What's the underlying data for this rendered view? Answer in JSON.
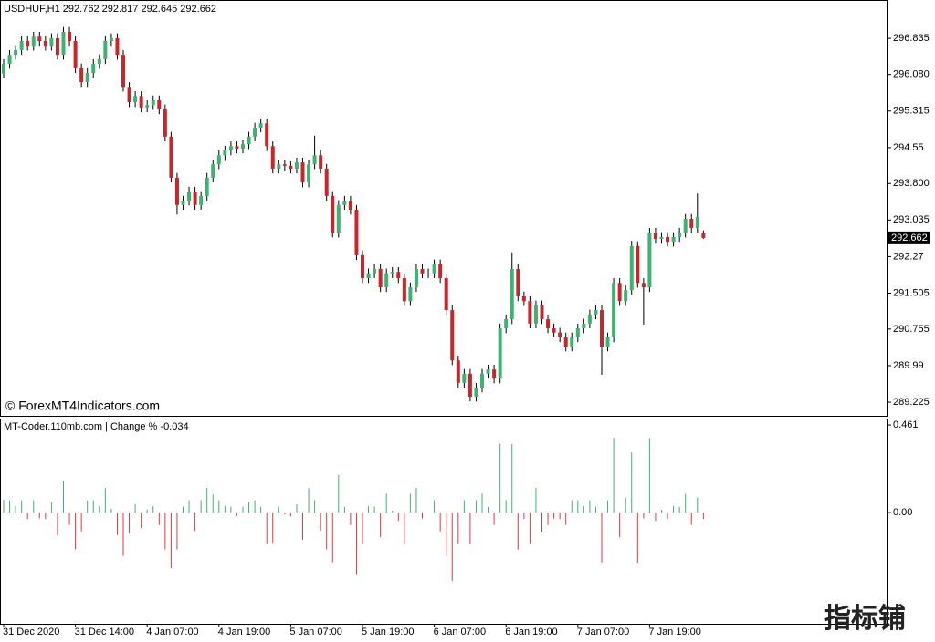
{
  "chart_data": [
    {
      "type": "candlestick",
      "title": "USDHUF,H1",
      "open": [
        296.1,
        296.3,
        296.49,
        296.59,
        296.78,
        296.68,
        296.87,
        296.78,
        296.68,
        296.84,
        296.49,
        296.97,
        296.78,
        296.21,
        295.92,
        296.11,
        296.3,
        296.4,
        296.78,
        296.84,
        296.49,
        295.82,
        295.5,
        295.63,
        295.39,
        295.44,
        295.54,
        295.35,
        294.78,
        293.92,
        293.35,
        293.44,
        293.63,
        293.35,
        293.54,
        293.92,
        294.2,
        294.39,
        294.49,
        294.58,
        294.53,
        294.62,
        294.78,
        294.97,
        295.06,
        294.58,
        294.11,
        294.2,
        294.17,
        294.11,
        294.24,
        293.82,
        294.2,
        294.39,
        294.11,
        293.54,
        292.77,
        293.35,
        293.44,
        293.25,
        292.3,
        291.82,
        291.92,
        292.01,
        291.63,
        291.92,
        291.95,
        291.82,
        291.34,
        291.63,
        292.01,
        291.92,
        291.92,
        292.11,
        291.82,
        291.15,
        290.1,
        289.63,
        289.82,
        289.34,
        289.53,
        289.82,
        289.91,
        289.72,
        290.77,
        290.96,
        292.01,
        291.44,
        291.34,
        290.87,
        291.25,
        290.96,
        290.77,
        290.68,
        290.58,
        290.39,
        290.58,
        290.77,
        290.87,
        291.06,
        291.15,
        290.39,
        290.58,
        291.72,
        291.34,
        291.57,
        292.49,
        291.72,
        291.63,
        292.77,
        292.64,
        292.68,
        292.58,
        292.68,
        292.77,
        293.06,
        292.87,
        292.762
      ],
      "high": [
        296.4,
        296.59,
        296.69,
        296.88,
        296.88,
        296.97,
        296.97,
        296.88,
        296.94,
        296.94,
        297.07,
        297.07,
        296.88,
        296.31,
        296.21,
        296.4,
        296.5,
        296.88,
        296.94,
        296.94,
        296.59,
        295.92,
        295.73,
        295.73,
        295.54,
        295.64,
        295.64,
        295.45,
        294.88,
        294.02,
        293.54,
        293.73,
        293.73,
        293.64,
        294.02,
        294.3,
        294.49,
        294.59,
        294.68,
        294.68,
        294.72,
        294.88,
        295.07,
        295.16,
        295.16,
        294.68,
        294.3,
        294.3,
        294.27,
        294.34,
        294.34,
        294.3,
        294.8,
        294.49,
        294.21,
        293.64,
        293.45,
        293.54,
        293.54,
        293.35,
        292.4,
        292.02,
        292.11,
        292.11,
        292.02,
        292.05,
        292.05,
        291.92,
        291.73,
        292.11,
        292.11,
        292.02,
        292.21,
        292.21,
        291.92,
        291.25,
        290.2,
        289.92,
        289.92,
        289.63,
        289.92,
        290.01,
        290.01,
        290.87,
        291.06,
        292.36,
        292.11,
        291.54,
        291.44,
        291.35,
        291.35,
        291.06,
        290.87,
        290.78,
        290.68,
        290.68,
        290.87,
        290.97,
        291.16,
        291.25,
        291.25,
        290.68,
        291.82,
        291.82,
        291.67,
        292.6,
        292.59,
        291.82,
        292.87,
        292.87,
        292.78,
        292.78,
        292.78,
        292.87,
        293.16,
        293.16,
        293.59,
        292.817
      ],
      "low": [
        296.0,
        296.2,
        296.39,
        296.49,
        296.58,
        296.58,
        296.68,
        296.58,
        296.58,
        296.39,
        296.39,
        296.68,
        296.11,
        295.82,
        295.82,
        296.01,
        296.2,
        296.3,
        296.68,
        296.39,
        295.72,
        295.4,
        295.4,
        295.29,
        295.29,
        295.34,
        295.25,
        294.68,
        293.82,
        293.15,
        293.25,
        293.34,
        293.25,
        293.25,
        293.44,
        293.82,
        294.1,
        294.29,
        294.39,
        294.43,
        294.43,
        294.52,
        294.68,
        294.87,
        294.48,
        294.01,
        294.01,
        294.07,
        294.01,
        294.01,
        293.72,
        293.72,
        294.1,
        294.01,
        293.44,
        292.67,
        292.67,
        293.25,
        293.15,
        292.2,
        291.72,
        291.72,
        291.82,
        291.53,
        291.53,
        291.82,
        291.72,
        291.24,
        291.24,
        291.53,
        291.82,
        291.82,
        291.82,
        291.72,
        291.05,
        290.0,
        289.53,
        289.53,
        289.24,
        289.24,
        289.43,
        289.72,
        289.62,
        289.62,
        290.67,
        290.86,
        291.34,
        291.24,
        290.77,
        290.77,
        290.86,
        290.67,
        290.58,
        290.48,
        290.29,
        290.29,
        290.48,
        290.67,
        290.77,
        290.96,
        289.8,
        290.29,
        290.48,
        291.24,
        291.24,
        291.47,
        291.62,
        290.85,
        291.53,
        292.54,
        292.54,
        292.48,
        292.48,
        292.58,
        292.67,
        292.77,
        292.77,
        292.645
      ],
      "close": [
        296.3,
        296.49,
        296.59,
        296.78,
        296.68,
        296.87,
        296.78,
        296.68,
        296.84,
        296.49,
        296.97,
        296.78,
        296.21,
        295.92,
        296.11,
        296.3,
        296.4,
        296.78,
        296.84,
        296.49,
        295.82,
        295.5,
        295.63,
        295.39,
        295.44,
        295.54,
        295.35,
        294.78,
        293.92,
        293.35,
        293.44,
        293.63,
        293.35,
        293.54,
        293.92,
        294.2,
        294.39,
        294.49,
        294.58,
        294.53,
        294.62,
        294.78,
        294.97,
        295.06,
        294.58,
        294.11,
        294.2,
        294.17,
        294.11,
        294.24,
        293.82,
        294.2,
        294.39,
        294.11,
        293.54,
        292.77,
        293.35,
        293.44,
        293.25,
        292.3,
        291.82,
        291.92,
        292.01,
        291.63,
        291.92,
        291.95,
        291.82,
        291.34,
        291.63,
        292.01,
        291.92,
        291.92,
        292.11,
        291.82,
        291.15,
        290.1,
        289.63,
        289.82,
        289.34,
        289.53,
        289.82,
        289.91,
        289.72,
        290.77,
        290.96,
        292.01,
        291.44,
        291.34,
        290.87,
        291.25,
        290.96,
        290.77,
        290.68,
        290.58,
        290.39,
        290.58,
        290.77,
        290.87,
        291.06,
        291.15,
        290.39,
        290.58,
        291.72,
        291.34,
        291.57,
        292.49,
        291.72,
        291.63,
        292.77,
        292.64,
        292.68,
        292.58,
        292.68,
        292.77,
        293.06,
        292.87,
        293.1,
        292.662
      ],
      "up_color": "#3cb371",
      "down_color": "#c8262b",
      "wick_color": "#000000",
      "ylim": [
        288.94,
        297.6
      ],
      "yticks": [
        296.835,
        {
          "value": 296.08,
          "label": "296.080"
        },
        295.315,
        294.55,
        {
          "value": 293.8,
          "label": "293.800"
        },
        293.035,
        292.27,
        291.505,
        290.755,
        289.99,
        289.225
      ],
      "annotations": [
        "© ForexMT4Indicators.com"
      ]
    },
    {
      "type": "bar",
      "title": "MT-Coder.110mb.com | Change %",
      "values": [
        0.068,
        0.065,
        0.034,
        0.065,
        -0.034,
        0.065,
        -0.031,
        -0.034,
        0.054,
        -0.119,
        0.163,
        -0.065,
        -0.193,
        -0.099,
        0.065,
        0.065,
        0.034,
        0.129,
        0.02,
        -0.119,
        -0.228,
        -0.109,
        0.044,
        -0.082,
        0.017,
        0.034,
        -0.065,
        -0.194,
        -0.292,
        -0.194,
        0.031,
        0.065,
        -0.096,
        0.065,
        0.13,
        0.095,
        0.065,
        0.034,
        0.031,
        -0.017,
        0.031,
        0.054,
        0.065,
        0.031,
        -0.163,
        -0.16,
        0.031,
        -0.01,
        -0.02,
        0.044,
        -0.143,
        0.129,
        0.065,
        -0.095,
        -0.194,
        -0.262,
        0.198,
        0.031,
        -0.065,
        -0.324,
        -0.164,
        0.034,
        0.031,
        -0.13,
        0.099,
        0.01,
        -0.044,
        -0.164,
        0.099,
        0.13,
        -0.031,
        0.0,
        0.065,
        -0.099,
        -0.229,
        -0.36,
        -0.162,
        0.065,
        -0.165,
        0.065,
        0.1,
        0.031,
        -0.065,
        0.362,
        0.065,
        0.361,
        -0.195,
        -0.034,
        -0.162,
        0.131,
        -0.1,
        -0.065,
        -0.031,
        -0.034,
        -0.065,
        0.065,
        0.065,
        0.034,
        0.065,
        0.031,
        -0.262,
        0.065,
        0.393,
        -0.13,
        0.079,
        0.316,
        -0.264,
        -0.031,
        0.392,
        -0.044,
        0.014,
        -0.034,
        0.034,
        0.031,
        0.099,
        -0.065,
        0.079,
        -0.034
      ],
      "up_color": "#3cb371",
      "down_color": "#e0383e",
      "ylim": [
        -0.585,
        0.49
      ],
      "yticks": [
        0.461,
        {
          "value": 0,
          "label": "0.00"
        }
      ],
      "categories": [
        "31 Dec 2020",
        null,
        null,
        null,
        null,
        null,
        null,
        null,
        null,
        null,
        null,
        null,
        "31 Dec 14:00",
        null,
        null,
        null,
        null,
        null,
        null,
        null,
        null,
        null,
        null,
        null,
        "4 Jan 07:00",
        null,
        null,
        null,
        null,
        null,
        null,
        null,
        null,
        null,
        null,
        null,
        "4 Jan 19:00",
        null,
        null,
        null,
        null,
        null,
        null,
        null,
        null,
        null,
        null,
        null,
        "5 Jan 07:00",
        null,
        null,
        null,
        null,
        null,
        null,
        null,
        null,
        null,
        null,
        null,
        "5 Jan 19:00",
        null,
        null,
        null,
        null,
        null,
        null,
        null,
        null,
        null,
        null,
        null,
        "6 Jan 07:00",
        null,
        null,
        null,
        null,
        null,
        null,
        null,
        null,
        null,
        null,
        null,
        "6 Jan 19:00",
        null,
        null,
        null,
        null,
        null,
        null,
        null,
        null,
        null,
        null,
        null,
        "7 Jan 07:00",
        null,
        null,
        null,
        null,
        null,
        null,
        null,
        null,
        null,
        null,
        null,
        "7 Jan 19:00",
        null,
        null,
        null,
        null,
        null,
        null,
        null,
        null,
        null
      ],
      "annotations": [
        "指标铺"
      ]
    }
  ]
}
